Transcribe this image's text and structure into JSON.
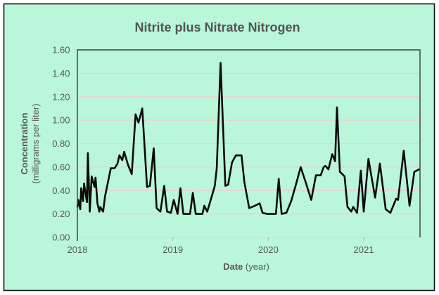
{
  "chart_data": {
    "type": "line",
    "title": "Nitrite plus Nitrate Nitrogen",
    "xlabel": "Date (year)",
    "xlabel_bold": "Date",
    "xlabel_unit": " (year)",
    "ylabel": "Concentration (milligrams per liter)",
    "ylabel_bold": "Concentration",
    "ylabel_unit": "(milligrams per liter)",
    "x_tick_labels": [
      "2018",
      "2019",
      "2020",
      "2021"
    ],
    "x_tick_years": [
      2018,
      2019,
      2020,
      2021
    ],
    "xlim": [
      2018.0,
      2021.59
    ],
    "ylim": [
      0.0,
      1.6
    ],
    "y_tick_step": 0.2,
    "y_tick_labels": [
      "0.00",
      "0.20",
      "0.40",
      "0.60",
      "0.80",
      "1.00",
      "1.20",
      "1.40",
      "1.60"
    ],
    "grid": "horizontal",
    "legend": "none",
    "series": [
      {
        "name": "Nitrite plus Nitrate Nitrogen",
        "x": [
          2018.0,
          2018.01,
          2018.03,
          2018.04,
          2018.06,
          2018.07,
          2018.1,
          2018.11,
          2018.13,
          2018.15,
          2018.18,
          2018.19,
          2018.21,
          2018.23,
          2018.24,
          2018.27,
          2018.29,
          2018.32,
          2018.35,
          2018.39,
          2018.42,
          2018.44,
          2018.47,
          2018.49,
          2018.53,
          2018.57,
          2018.61,
          2018.64,
          2018.68,
          2018.73,
          2018.76,
          2018.8,
          2018.83,
          2018.87,
          2018.91,
          2018.94,
          2018.98,
          2019.01,
          2019.05,
          2019.08,
          2019.11,
          2019.18,
          2019.21,
          2019.24,
          2019.31,
          2019.33,
          2019.36,
          2019.39,
          2019.44,
          2019.46,
          2019.5,
          2019.55,
          2019.58,
          2019.62,
          2019.66,
          2019.72,
          2019.75,
          2019.8,
          2019.86,
          2019.91,
          2019.94,
          2019.99,
          2020.05,
          2020.08,
          2020.11,
          2020.14,
          2020.19,
          2020.24,
          2020.29,
          2020.34,
          2020.4,
          2020.45,
          2020.5,
          2020.55,
          2020.58,
          2020.6,
          2020.63,
          2020.67,
          2020.7,
          2020.72,
          2020.75,
          2020.8,
          2020.83,
          2020.87,
          2020.89,
          2020.93,
          2020.97,
          2021.0,
          2021.05,
          2021.12,
          2021.17,
          2021.23,
          2021.28,
          2021.34,
          2021.36,
          2021.42,
          2021.48,
          2021.53,
          2021.58
        ],
        "y": [
          0.26,
          0.32,
          0.24,
          0.42,
          0.31,
          0.46,
          0.3,
          0.72,
          0.22,
          0.52,
          0.43,
          0.51,
          0.29,
          0.22,
          0.26,
          0.22,
          0.35,
          0.47,
          0.59,
          0.59,
          0.63,
          0.7,
          0.66,
          0.73,
          0.62,
          0.54,
          1.05,
          0.98,
          1.1,
          0.43,
          0.44,
          0.76,
          0.25,
          0.22,
          0.44,
          0.22,
          0.21,
          0.32,
          0.2,
          0.42,
          0.2,
          0.2,
          0.38,
          0.2,
          0.2,
          0.27,
          0.22,
          0.3,
          0.44,
          0.59,
          1.49,
          0.44,
          0.45,
          0.64,
          0.7,
          0.7,
          0.47,
          0.25,
          0.27,
          0.29,
          0.21,
          0.2,
          0.2,
          0.2,
          0.5,
          0.2,
          0.21,
          0.31,
          0.45,
          0.6,
          0.45,
          0.32,
          0.53,
          0.53,
          0.6,
          0.61,
          0.58,
          0.71,
          0.65,
          1.11,
          0.56,
          0.52,
          0.26,
          0.22,
          0.26,
          0.21,
          0.57,
          0.22,
          0.67,
          0.34,
          0.63,
          0.24,
          0.21,
          0.33,
          0.32,
          0.74,
          0.27,
          0.56,
          0.58
        ]
      }
    ],
    "colors": {
      "page": "#ffffff",
      "background": "#b9f6da",
      "gridline": "#f0cbd5",
      "axis_line": "#d9d9d9",
      "tick": "#b9adb1",
      "frame": "#3d3d3d",
      "line": "#0a0a0a",
      "text": "#595959",
      "outer_border": "#141414"
    }
  }
}
